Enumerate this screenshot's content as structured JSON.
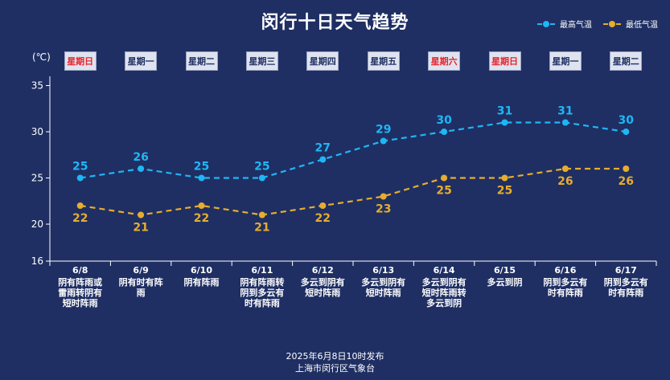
{
  "title": "闵行十日天气趋势",
  "unit": "(℃)",
  "legend": [
    {
      "label": "最高气温",
      "color": "#1fb6f5"
    },
    {
      "label": "最低气温",
      "color": "#e6ad2e"
    }
  ],
  "days": [
    {
      "weekday": "星期日",
      "weekend": true,
      "date": "6/8",
      "weather": "阴有阵雨或雷雨转阴有短时阵雨"
    },
    {
      "weekday": "星期一",
      "weekend": false,
      "date": "6/9",
      "weather": "阴有时有阵雨"
    },
    {
      "weekday": "星期二",
      "weekend": false,
      "date": "6/10",
      "weather": "阴有阵雨"
    },
    {
      "weekday": "星期三",
      "weekend": false,
      "date": "6/11",
      "weather": "阴有阵雨转阴到多云有时有阵雨"
    },
    {
      "weekday": "星期四",
      "weekend": false,
      "date": "6/12",
      "weather": "多云到阴有短时阵雨"
    },
    {
      "weekday": "星期五",
      "weekend": false,
      "date": "6/13",
      "weather": "多云到阴有短时阵雨"
    },
    {
      "weekday": "星期六",
      "weekend": true,
      "date": "6/14",
      "weather": "多云到阴有短时阵雨转多云到阴"
    },
    {
      "weekday": "星期日",
      "weekend": true,
      "date": "6/15",
      "weather": "多云到阴"
    },
    {
      "weekday": "星期一",
      "weekend": false,
      "date": "6/16",
      "weather": "阴到多云有时有阵雨"
    },
    {
      "weekday": "星期二",
      "weekend": false,
      "date": "6/17",
      "weather": "阴到多云有时有阵雨"
    }
  ],
  "chart_data": {
    "type": "line",
    "x": [
      "6/8",
      "6/9",
      "6/10",
      "6/11",
      "6/12",
      "6/13",
      "6/14",
      "6/15",
      "6/16",
      "6/17"
    ],
    "series": [
      {
        "name": "最高气温",
        "values": [
          25,
          26,
          25,
          25,
          27,
          29,
          30,
          31,
          31,
          30
        ],
        "color": "#1fb6f5"
      },
      {
        "name": "最低气温",
        "values": [
          22,
          21,
          22,
          21,
          22,
          23,
          25,
          25,
          26,
          26
        ],
        "color": "#e6ad2e"
      }
    ],
    "yticks": [
      16,
      20,
      25,
      30,
      35
    ],
    "ylim": [
      16,
      36
    ],
    "grid": false,
    "legend_position": "top-right"
  },
  "footer": {
    "line1": "2025年6月8日10时发布",
    "line2": "上海市闵行区气象台"
  }
}
